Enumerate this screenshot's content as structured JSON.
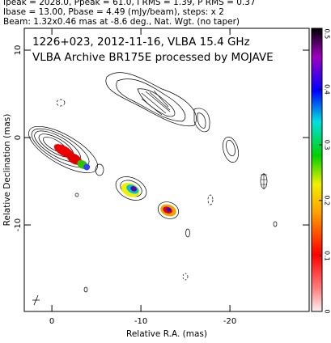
{
  "chart_data": {
    "type": "contour",
    "header_lines": [
      "Ipeak = 2028.0, Ppeak = 61.0, I RMS = 1.39, P RMS = 0.37",
      "Ibase = 13.00, Pbase = 4.49 (mJy/beam), steps: x 2",
      "Beam: 1.32x0.46 mas at -8.6 deg., Nat. Wgt. (no taper)"
    ],
    "annotations": [
      "1226+023, 2012-11-16, VLBA 15.4 GHz",
      "VLBA Archive BR175E processed by MOJAVE"
    ],
    "x_label": "Relative R.A. (mas)",
    "y_label": "Relative Declination (mas)",
    "xlim": [
      3.1,
      -28.9
    ],
    "xticks": [
      0,
      -10,
      -20
    ],
    "ylim": [
      -19.9,
      12.5
    ],
    "yticks": [
      -10,
      0,
      10
    ],
    "colorbar": {
      "lim": [
        0,
        0.51
      ],
      "ticks": [
        0,
        0.1,
        0.2,
        0.3,
        0.4,
        0.5
      ]
    }
  }
}
